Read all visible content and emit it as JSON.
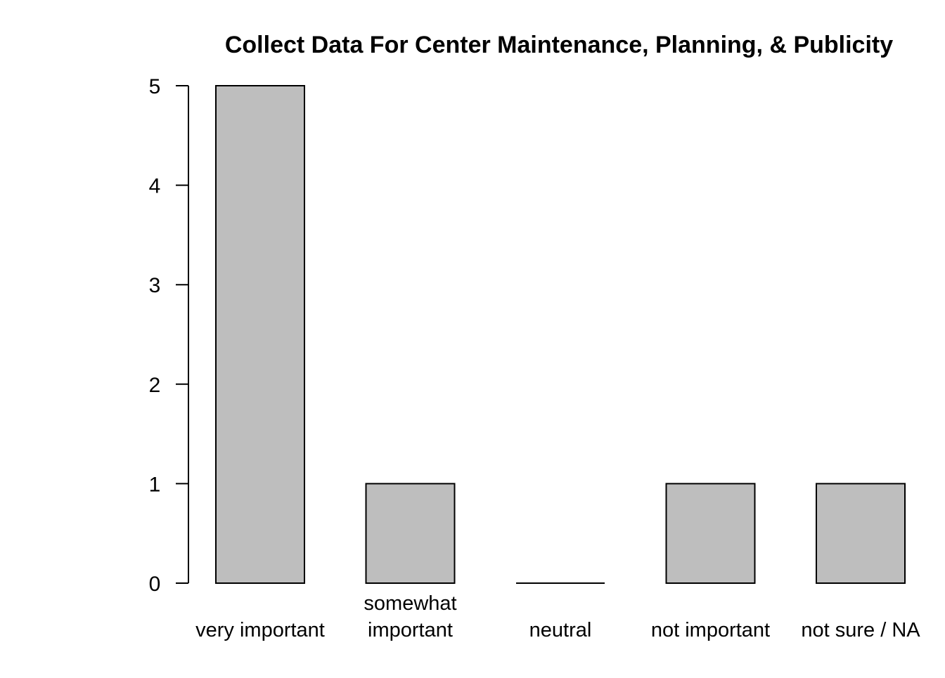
{
  "chart_data": {
    "type": "bar",
    "title": "Collect Data For Center Maintenance, Planning, & Publicity",
    "categories": [
      [
        "very important"
      ],
      [
        "somewhat",
        "important"
      ],
      [
        "neutral"
      ],
      [
        "not important"
      ],
      [
        "not sure / NA"
      ]
    ],
    "values": [
      5,
      1,
      0,
      1,
      1
    ],
    "ylim": [
      0,
      5
    ],
    "yticks": [
      0,
      1,
      2,
      3,
      4,
      5
    ],
    "bar_color": "#bebebe",
    "border_color": "#000000",
    "grid": false,
    "legend": "none"
  }
}
